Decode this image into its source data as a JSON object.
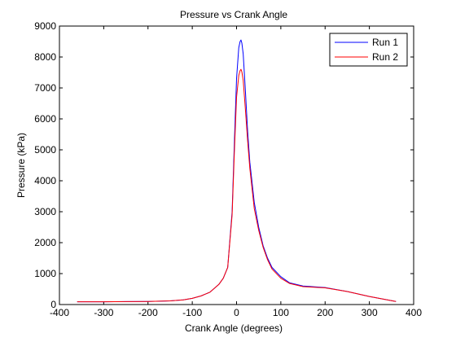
{
  "chart_data": {
    "type": "line",
    "title": "Pressure vs Crank Angle",
    "xlabel": "Crank Angle (degrees)",
    "ylabel": "Pressure (kPa)",
    "xlim": [
      -400,
      400
    ],
    "ylim": [
      0,
      9000
    ],
    "xticks": [
      -400,
      -300,
      -200,
      -100,
      0,
      100,
      200,
      300,
      400
    ],
    "yticks": [
      0,
      1000,
      2000,
      3000,
      4000,
      5000,
      6000,
      7000,
      8000,
      9000
    ],
    "grid": false,
    "legend_position": "top-right",
    "series": [
      {
        "name": "Run 1",
        "color": "#0000ff",
        "x": [
          -360,
          -300,
          -250,
          -200,
          -150,
          -120,
          -100,
          -80,
          -60,
          -40,
          -30,
          -20,
          -10,
          -5,
          0,
          5,
          8,
          10,
          12,
          15,
          20,
          25,
          30,
          40,
          50,
          60,
          70,
          80,
          100,
          120,
          150,
          200,
          250,
          300,
          360
        ],
        "y": [
          90,
          90,
          95,
          100,
          120,
          150,
          200,
          280,
          400,
          650,
          850,
          1200,
          3000,
          5200,
          7300,
          8300,
          8500,
          8550,
          8450,
          8100,
          6900,
          5600,
          4600,
          3300,
          2500,
          1900,
          1500,
          1200,
          900,
          700,
          600,
          550,
          420,
          260,
          100
        ]
      },
      {
        "name": "Run 2",
        "color": "#ff0000",
        "x": [
          -360,
          -300,
          -250,
          -200,
          -150,
          -120,
          -100,
          -80,
          -60,
          -40,
          -30,
          -20,
          -10,
          -5,
          0,
          5,
          8,
          10,
          12,
          15,
          20,
          25,
          30,
          40,
          50,
          60,
          70,
          80,
          100,
          120,
          150,
          200,
          250,
          300,
          360
        ],
        "y": [
          90,
          90,
          95,
          100,
          120,
          150,
          200,
          280,
          400,
          650,
          850,
          1200,
          2900,
          4900,
          6700,
          7400,
          7560,
          7600,
          7520,
          7250,
          6300,
          5300,
          4400,
          3100,
          2400,
          1850,
          1450,
          1150,
          850,
          680,
          580,
          540,
          420,
          260,
          100
        ]
      }
    ]
  }
}
